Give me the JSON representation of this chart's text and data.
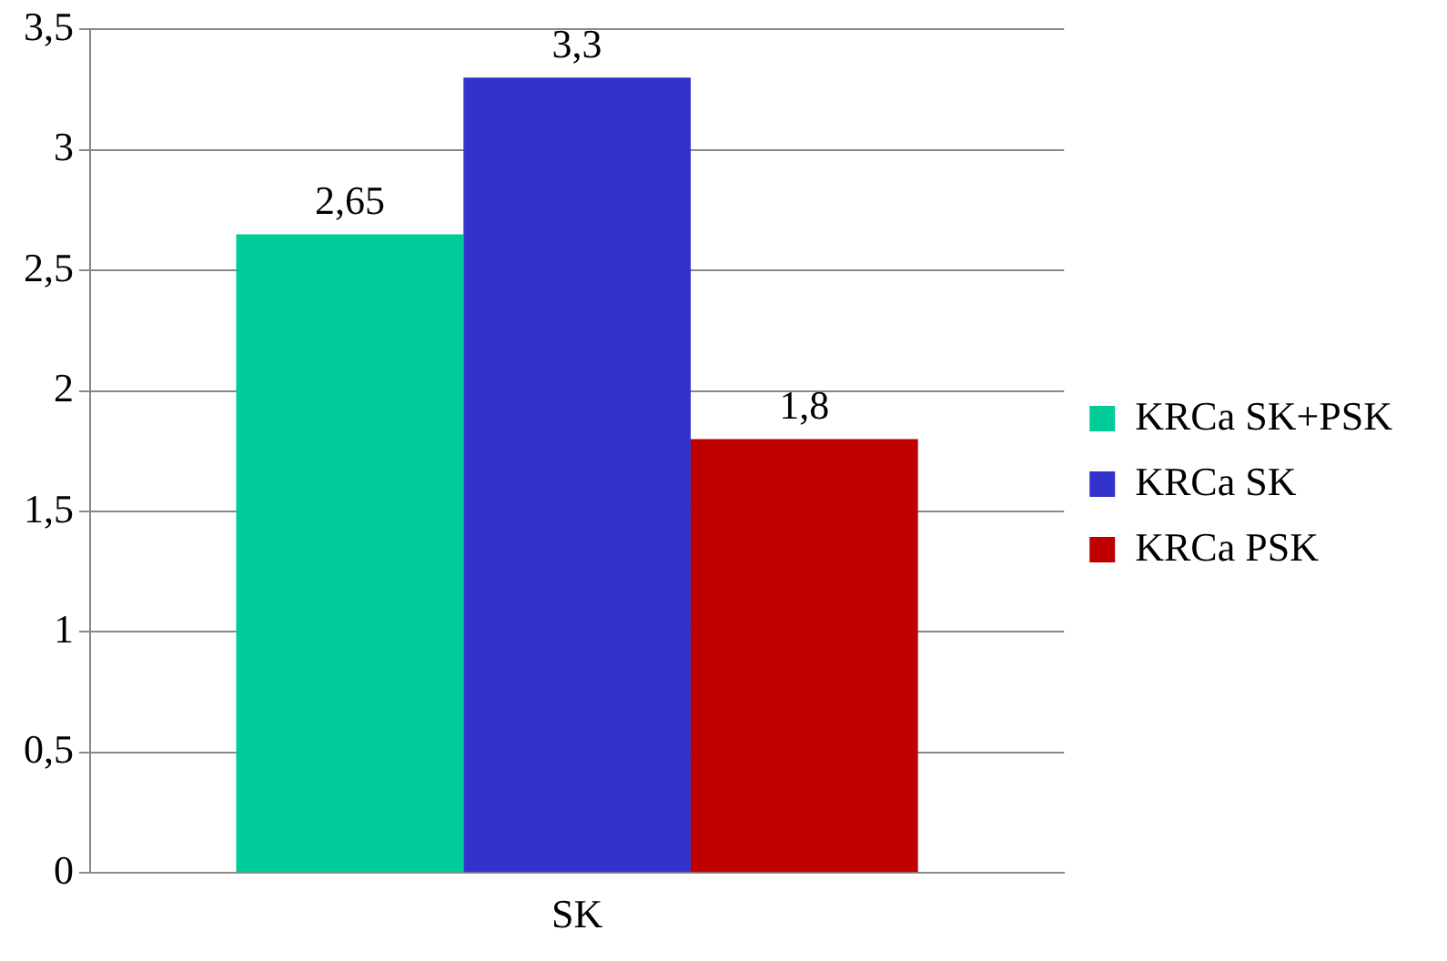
{
  "chart_data": {
    "type": "bar",
    "categories": [
      "SK"
    ],
    "series": [
      {
        "name": "KRCa SK+PSK",
        "color": "#00cc99",
        "values": [
          2.65
        ],
        "value_labels": [
          "2,65"
        ]
      },
      {
        "name": "KRCa SK",
        "color": "#3333cc",
        "values": [
          3.3
        ],
        "value_labels": [
          "3,3"
        ]
      },
      {
        "name": "KRCa PSK",
        "color": "#c00000",
        "values": [
          1.8
        ],
        "value_labels": [
          "1,8"
        ]
      }
    ],
    "ylim": [
      0,
      3.5
    ],
    "yticks": [
      {
        "value": 0,
        "label": "0"
      },
      {
        "value": 0.5,
        "label": "0,5"
      },
      {
        "value": 1,
        "label": "1"
      },
      {
        "value": 1.5,
        "label": "1,5"
      },
      {
        "value": 2,
        "label": "2"
      },
      {
        "value": 2.5,
        "label": "2,5"
      },
      {
        "value": 3,
        "label": "3"
      },
      {
        "value": 3.5,
        "label": "3,5"
      }
    ],
    "grid": "y",
    "legend": "right"
  }
}
